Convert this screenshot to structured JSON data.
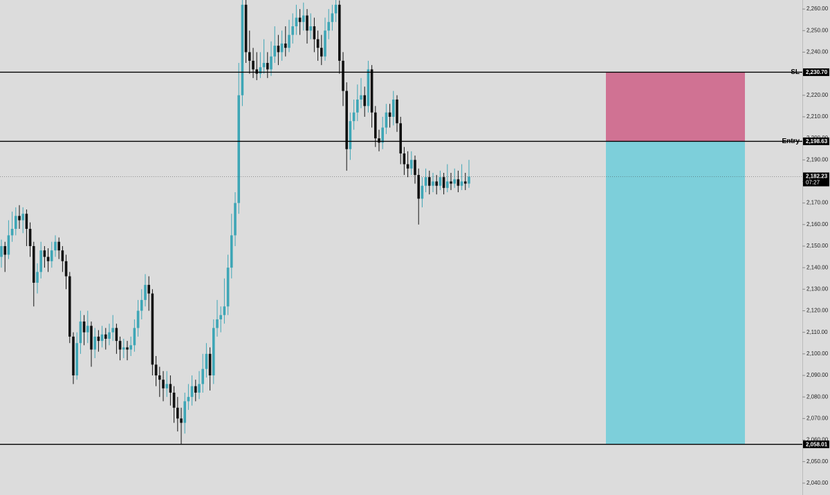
{
  "chart_data": {
    "type": "candlestick",
    "ylim": [
      2034.5,
      2264.2
    ],
    "yticks": [
      {
        "value": 2040,
        "label": "2,040.00"
      },
      {
        "value": 2050,
        "label": "2,050.00"
      },
      {
        "value": 2060,
        "label": "2,060.00"
      },
      {
        "value": 2070,
        "label": "2,070.00"
      },
      {
        "value": 2080,
        "label": "2,080.00"
      },
      {
        "value": 2090,
        "label": "2,090.00"
      },
      {
        "value": 2100,
        "label": "2,100.00"
      },
      {
        "value": 2110,
        "label": "2,110.00"
      },
      {
        "value": 2120,
        "label": "2,120.00"
      },
      {
        "value": 2130,
        "label": "2,130.00"
      },
      {
        "value": 2140,
        "label": "2,140.00"
      },
      {
        "value": 2150,
        "label": "2,150.00"
      },
      {
        "value": 2160,
        "label": "2,160.00"
      },
      {
        "value": 2170,
        "label": "2,170.00"
      },
      {
        "value": 2180,
        "label": "2,180.00"
      },
      {
        "value": 2190,
        "label": "2,190.00"
      },
      {
        "value": 2200,
        "label": "2,200.00"
      },
      {
        "value": 2210,
        "label": "2,210.00"
      },
      {
        "value": 2220,
        "label": "2,220.00"
      },
      {
        "value": 2230,
        "label": "2,230.00"
      },
      {
        "value": 2240,
        "label": "2,240.00"
      },
      {
        "value": 2250,
        "label": "2,250.00"
      },
      {
        "value": 2260,
        "label": "2,260.00"
      }
    ],
    "up_color": "#3ea6b6",
    "down_color": "#111111",
    "stop_color": "#d07293",
    "target_color": "#7dcfda",
    "levels": [
      {
        "label": "SL",
        "value": 2230.7,
        "value_label": "2,230.70"
      },
      {
        "label": "Entry",
        "value": 2198.63,
        "value_label": "2,198.63"
      },
      {
        "value": 2058.01,
        "value_label": "2,058.01"
      }
    ],
    "current_price": {
      "value": 2182.23,
      "label": "2,182.23",
      "countdown": "07:27"
    },
    "candles": [
      [
        2145,
        2153,
        2140,
        2150
      ],
      [
        2150,
        2152,
        2138,
        2146
      ],
      [
        2146,
        2162,
        2144,
        2155
      ],
      [
        2155,
        2166,
        2152,
        2158
      ],
      [
        2158,
        2168,
        2155,
        2164
      ],
      [
        2164,
        2169,
        2158,
        2162
      ],
      [
        2162,
        2168,
        2156,
        2165
      ],
      [
        2165,
        2167,
        2150,
        2158
      ],
      [
        2158,
        2161,
        2145,
        2150
      ],
      [
        2150,
        2152,
        2122,
        2133
      ],
      [
        2133,
        2142,
        2128,
        2138
      ],
      [
        2138,
        2152,
        2135,
        2148
      ],
      [
        2148,
        2150,
        2140,
        2145
      ],
      [
        2145,
        2149,
        2138,
        2143
      ],
      [
        2143,
        2152,
        2140,
        2148
      ],
      [
        2148,
        2155,
        2145,
        2152
      ],
      [
        2152,
        2154,
        2144,
        2148
      ],
      [
        2148,
        2150,
        2138,
        2143
      ],
      [
        2143,
        2146,
        2130,
        2136
      ],
      [
        2136,
        2138,
        2105,
        2108
      ],
      [
        2108,
        2110,
        2086,
        2090
      ],
      [
        2090,
        2110,
        2088,
        2105
      ],
      [
        2105,
        2120,
        2100,
        2115
      ],
      [
        2115,
        2118,
        2104,
        2110
      ],
      [
        2110,
        2120,
        2105,
        2113
      ],
      [
        2113,
        2115,
        2094,
        2102
      ],
      [
        2102,
        2112,
        2098,
        2108
      ],
      [
        2108,
        2111,
        2101,
        2106
      ],
      [
        2106,
        2113,
        2103,
        2109
      ],
      [
        2109,
        2112,
        2102,
        2107
      ],
      [
        2107,
        2114,
        2104,
        2110
      ],
      [
        2110,
        2118,
        2106,
        2112
      ],
      [
        2112,
        2114,
        2100,
        2106
      ],
      [
        2106,
        2108,
        2097,
        2102
      ],
      [
        2102,
        2107,
        2098,
        2103
      ],
      [
        2103,
        2106,
        2097,
        2102
      ],
      [
        2102,
        2108,
        2099,
        2104
      ],
      [
        2104,
        2116,
        2101,
        2112
      ],
      [
        2112,
        2125,
        2108,
        2120
      ],
      [
        2120,
        2130,
        2116,
        2125
      ],
      [
        2125,
        2137,
        2122,
        2132
      ],
      [
        2132,
        2136,
        2120,
        2128
      ],
      [
        2128,
        2130,
        2090,
        2095
      ],
      [
        2095,
        2099,
        2085,
        2090
      ],
      [
        2090,
        2094,
        2080,
        2088
      ],
      [
        2088,
        2092,
        2078,
        2084
      ],
      [
        2084,
        2092,
        2080,
        2086
      ],
      [
        2086,
        2090,
        2076,
        2082
      ],
      [
        2082,
        2085,
        2068,
        2075
      ],
      [
        2075,
        2080,
        2064,
        2070
      ],
      [
        2070,
        2075,
        2058,
        2068
      ],
      [
        2068,
        2082,
        2063,
        2078
      ],
      [
        2078,
        2086,
        2074,
        2080
      ],
      [
        2080,
        2090,
        2076,
        2085
      ],
      [
        2085,
        2088,
        2078,
        2082
      ],
      [
        2082,
        2092,
        2079,
        2086
      ],
      [
        2086,
        2100,
        2082,
        2093
      ],
      [
        2093,
        2105,
        2089,
        2100
      ],
      [
        2100,
        2103,
        2083,
        2090
      ],
      [
        2090,
        2116,
        2086,
        2112
      ],
      [
        2112,
        2125,
        2108,
        2116
      ],
      [
        2116,
        2122,
        2110,
        2118
      ],
      [
        2118,
        2135,
        2114,
        2122
      ],
      [
        2122,
        2146,
        2118,
        2140
      ],
      [
        2140,
        2165,
        2135,
        2155
      ],
      [
        2155,
        2175,
        2150,
        2170
      ],
      [
        2170,
        2235,
        2165,
        2220
      ],
      [
        2220,
        2266,
        2215,
        2262
      ],
      [
        2262,
        2266,
        2235,
        2240
      ],
      [
        2240,
        2250,
        2230,
        2236
      ],
      [
        2236,
        2242,
        2228,
        2232
      ],
      [
        2232,
        2240,
        2227,
        2230
      ],
      [
        2230,
        2240,
        2228,
        2233
      ],
      [
        2233,
        2246,
        2230,
        2235
      ],
      [
        2235,
        2240,
        2228,
        2232
      ],
      [
        2232,
        2245,
        2229,
        2238
      ],
      [
        2238,
        2252,
        2235,
        2243
      ],
      [
        2243,
        2248,
        2234,
        2240
      ],
      [
        2240,
        2250,
        2236,
        2244
      ],
      [
        2244,
        2252,
        2238,
        2242
      ],
      [
        2242,
        2255,
        2240,
        2248
      ],
      [
        2248,
        2258,
        2244,
        2252
      ],
      [
        2252,
        2262,
        2248,
        2256
      ],
      [
        2256,
        2260,
        2248,
        2254
      ],
      [
        2254,
        2263,
        2250,
        2257
      ],
      [
        2257,
        2260,
        2244,
        2250
      ],
      [
        2250,
        2258,
        2246,
        2252
      ],
      [
        2252,
        2256,
        2240,
        2246
      ],
      [
        2246,
        2250,
        2236,
        2242
      ],
      [
        2242,
        2248,
        2234,
        2238
      ],
      [
        2238,
        2256,
        2236,
        2250
      ],
      [
        2250,
        2260,
        2246,
        2254
      ],
      [
        2254,
        2262,
        2250,
        2258
      ],
      [
        2258,
        2266,
        2254,
        2262
      ],
      [
        2262,
        2264,
        2230,
        2236
      ],
      [
        2236,
        2240,
        2215,
        2222
      ],
      [
        2222,
        2226,
        2185,
        2195
      ],
      [
        2195,
        2212,
        2190,
        2208
      ],
      [
        2208,
        2218,
        2204,
        2212
      ],
      [
        2212,
        2225,
        2208,
        2218
      ],
      [
        2218,
        2228,
        2214,
        2220
      ],
      [
        2220,
        2224,
        2210,
        2215
      ],
      [
        2215,
        2236,
        2212,
        2232
      ],
      [
        2232,
        2234,
        2205,
        2212
      ],
      [
        2212,
        2215,
        2196,
        2200
      ],
      [
        2200,
        2204,
        2194,
        2198
      ],
      [
        2198,
        2210,
        2195,
        2205
      ],
      [
        2205,
        2216,
        2202,
        2212
      ],
      [
        2212,
        2216,
        2205,
        2210
      ],
      [
        2210,
        2222,
        2206,
        2218
      ],
      [
        2218,
        2220,
        2203,
        2207
      ],
      [
        2207,
        2210,
        2188,
        2193
      ],
      [
        2193,
        2196,
        2183,
        2188
      ],
      [
        2188,
        2194,
        2182,
        2186
      ],
      [
        2186,
        2194,
        2183,
        2190
      ],
      [
        2190,
        2192,
        2179,
        2183
      ],
      [
        2183,
        2186,
        2160,
        2172
      ],
      [
        2172,
        2182,
        2168,
        2178
      ],
      [
        2178,
        2186,
        2175,
        2182
      ],
      [
        2182,
        2185,
        2174,
        2178
      ],
      [
        2178,
        2184,
        2175,
        2180
      ],
      [
        2180,
        2183,
        2174,
        2178
      ],
      [
        2178,
        2185,
        2176,
        2182
      ],
      [
        2182,
        2184,
        2174,
        2177
      ],
      [
        2177,
        2188,
        2175,
        2180
      ],
      [
        2180,
        2184,
        2176,
        2179
      ],
      [
        2179,
        2186,
        2177,
        2181
      ],
      [
        2181,
        2185,
        2175,
        2178
      ],
      [
        2178,
        2188,
        2176,
        2180
      ],
      [
        2180,
        2184,
        2176,
        2179
      ],
      [
        2179,
        2190,
        2177,
        2182.23
      ]
    ]
  }
}
